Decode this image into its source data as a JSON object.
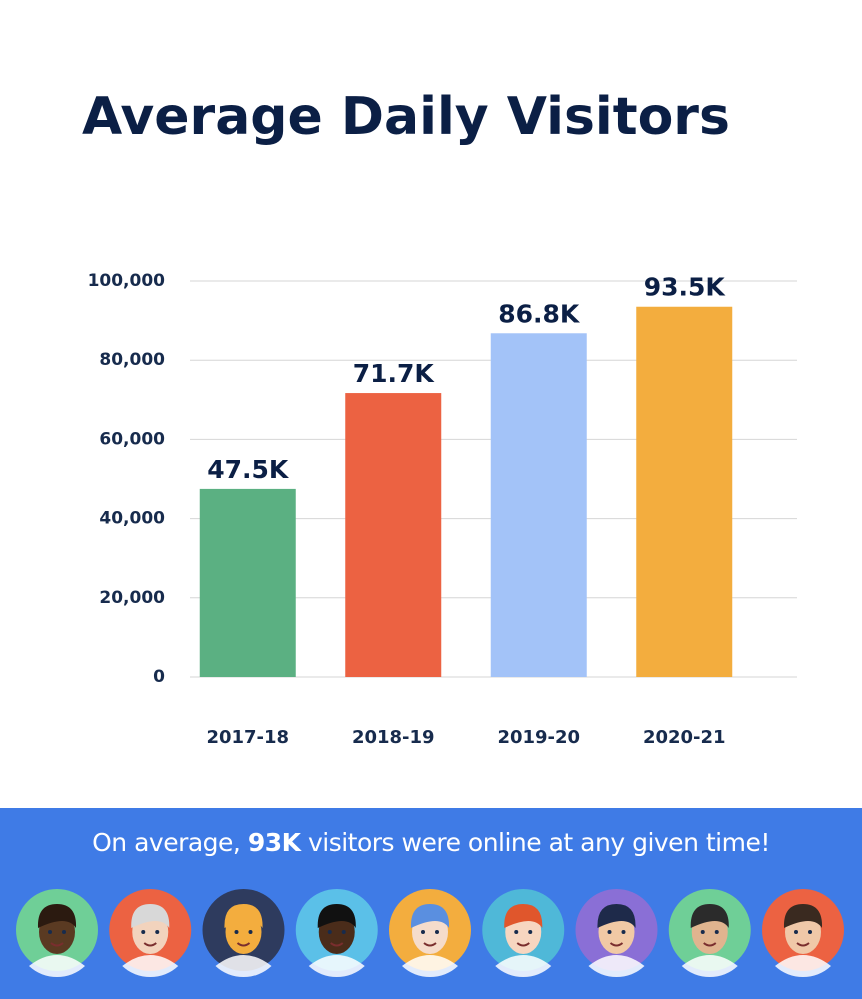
{
  "chart_data": {
    "type": "bar",
    "title": "Average Daily Visitors",
    "categories": [
      "2017-18",
      "2018-19",
      "2019-20",
      "2020-21"
    ],
    "values": [
      47500,
      71700,
      86800,
      93500
    ],
    "value_labels": [
      "47.5K",
      "71.7K",
      "86.8K",
      "93.5K"
    ],
    "colors": [
      "#5bb082",
      "#ec6242",
      "#a3c3f8",
      "#f3ad3e"
    ],
    "ylim": [
      0,
      100000
    ],
    "yticks": [
      0,
      {
        "value": 20000,
        "label": "20,000"
      },
      {
        "value": 40000,
        "label": "40,000"
      },
      {
        "value": 60000,
        "label": "60,000"
      },
      {
        "value": 80000,
        "label": "80,000"
      },
      {
        "value": 100000,
        "label": "100,000"
      }
    ],
    "grid": true
  },
  "banner": {
    "before": "On average,",
    "highlight": "93K",
    "after": "visitors were online at any given time!"
  }
}
